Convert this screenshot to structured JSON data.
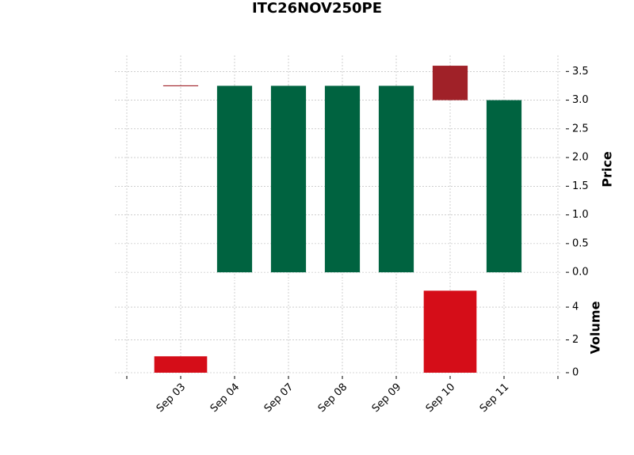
{
  "chart_data": {
    "type": "candlestick",
    "title": "ITC26NOV250PE",
    "categories": [
      "Sep 03",
      "Sep 04",
      "Sep 07",
      "Sep 08",
      "Sep 09",
      "Sep 10",
      "Sep 11"
    ],
    "open": [
      3.25,
      0,
      0,
      0,
      0,
      3.6,
      0
    ],
    "high": [
      3.25,
      3.25,
      3.25,
      3.25,
      3.25,
      3.6,
      3.0
    ],
    "low": [
      3.25,
      0,
      0,
      0,
      0,
      3.0,
      0
    ],
    "close": [
      3.25,
      3.25,
      3.25,
      3.25,
      3.25,
      3.0,
      3.0
    ],
    "volume": [
      1,
      0,
      0,
      0,
      0,
      5,
      0
    ],
    "up_color": "#006340",
    "down_color": "#a02128",
    "volume_color": "#d50d18",
    "ylabel": "Price",
    "y2label": "Volume",
    "xlim": [
      -1,
      7
    ],
    "ylim": [
      -0.15,
      3.78
    ],
    "yticks": [
      {
        "value": 0,
        "label": "0.0"
      },
      0.5,
      {
        "value": 1,
        "label": "1.0"
      },
      1.5,
      {
        "value": 2,
        "label": "2.0"
      },
      2.5,
      {
        "value": 3,
        "label": "3.0"
      },
      3.5
    ],
    "y2lim": [
      0,
      5.5
    ],
    "y2ticks": [
      0,
      2,
      4
    ],
    "grid": true
  }
}
